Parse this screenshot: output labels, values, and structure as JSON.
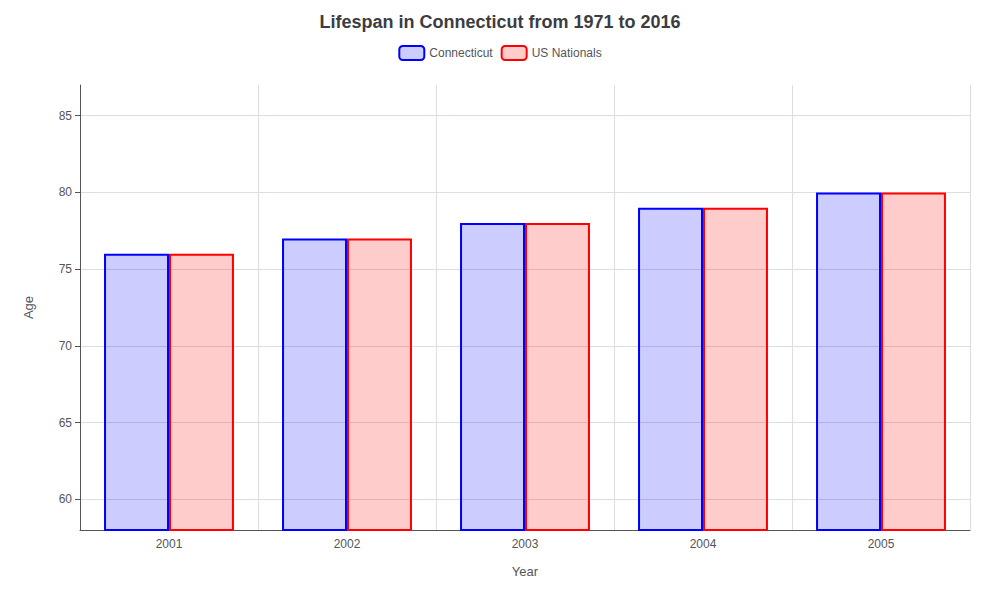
{
  "chart_data": {
    "type": "bar",
    "title": "Lifespan in Connecticut from 1971 to 2016",
    "xlabel": "Year",
    "ylabel": "Age",
    "categories": [
      "2001",
      "2002",
      "2003",
      "2004",
      "2005"
    ],
    "series": [
      {
        "name": "Connecticut",
        "color": "#0000ff",
        "values": [
          76,
          77,
          78,
          79,
          80
        ]
      },
      {
        "name": "US Nationals",
        "color": "#ff0000",
        "values": [
          76,
          77,
          78,
          79,
          80
        ]
      }
    ],
    "ylim": [
      58,
      87
    ],
    "yticks": [
      60,
      65,
      70,
      75,
      80,
      85
    ],
    "grid": true,
    "legend": "top"
  }
}
